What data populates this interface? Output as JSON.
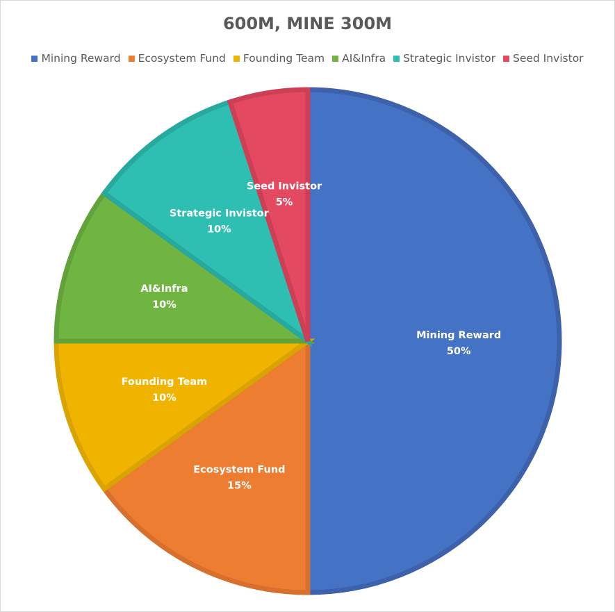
{
  "chart_data": {
    "type": "pie",
    "title": "600M, MINE 300M",
    "legend_position": "top",
    "categories": [
      "Mining Reward",
      "Ecosystem Fund",
      "Founding Team",
      "AI&Infra",
      "Strategic Invistor",
      "Seed Invistor"
    ],
    "values": [
      50,
      15,
      10,
      10,
      10,
      5
    ],
    "value_labels": [
      "50%",
      "15%",
      "10%",
      "10%",
      "10%",
      "5%"
    ],
    "colors": [
      "#4472c4",
      "#ed7d31",
      "#f0b400",
      "#70b542",
      "#2ebfb2",
      "#e34a61"
    ],
    "border_colors": [
      "#3d62ab",
      "#d6702c",
      "#d9a300",
      "#63a23a",
      "#27a99d",
      "#cc3f55"
    ]
  }
}
